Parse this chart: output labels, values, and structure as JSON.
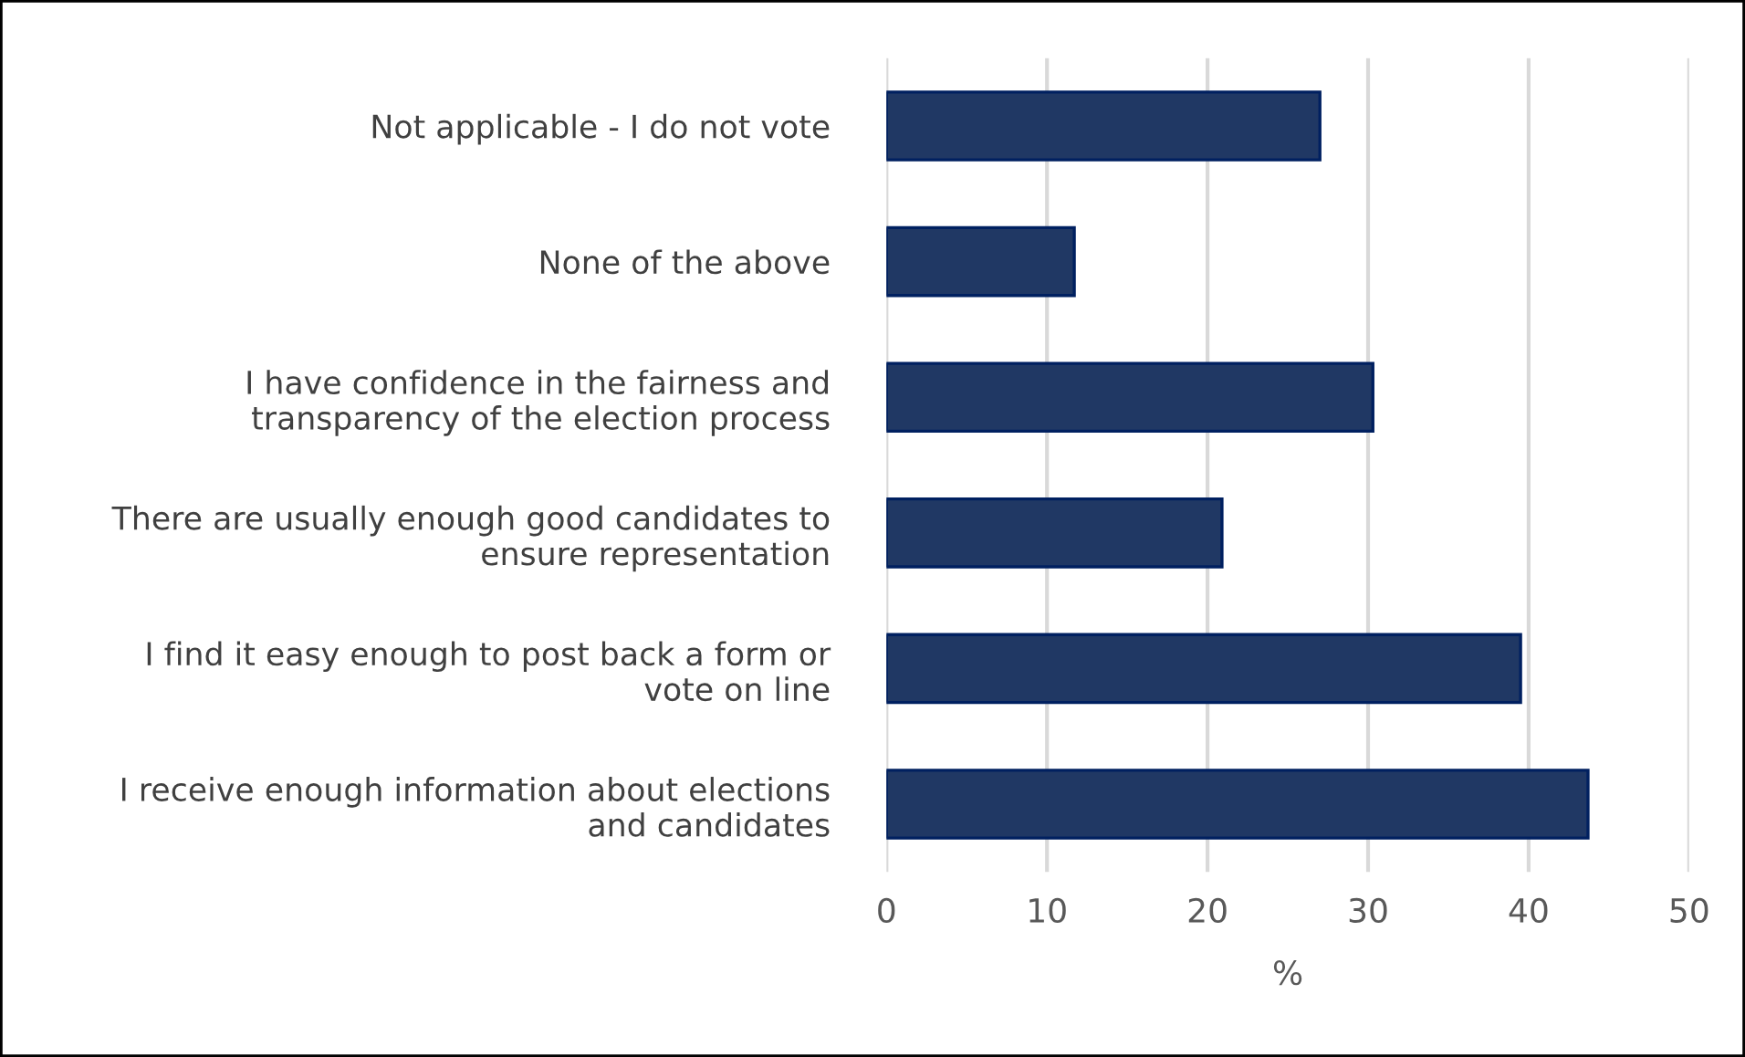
{
  "chart_data": {
    "type": "bar",
    "orientation": "horizontal",
    "xlabel": "%",
    "categories": [
      "Not applicable - I do not vote",
      "None of the above",
      "I have confidence in the fairness and\ntransparency of the election process",
      "There are usually enough good candidates to\nensure representation",
      "I find it easy enough to post back a form or\nvote on line",
      "I receive enough information about elections\nand candidates"
    ],
    "values": [
      27.0,
      11.7,
      30.3,
      20.9,
      39.5,
      43.7
    ],
    "color": "#203864",
    "xlim": [
      0,
      50
    ],
    "xticks": [
      0,
      10,
      20,
      30,
      40,
      50
    ],
    "grid": "x",
    "legend": false
  }
}
